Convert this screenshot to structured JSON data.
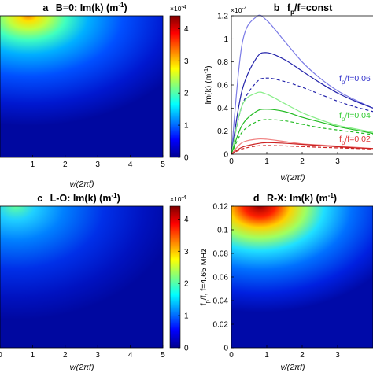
{
  "chart_data": [
    {
      "panel": "a",
      "type": "heatmap",
      "title_letter": "a",
      "title": "B=0: Im(k) (m",
      "title_sup": "-1",
      "title_end": ")",
      "xlabel": "ν/(2πf)",
      "xticks": [
        "1",
        "2",
        "3",
        "4",
        "5"
      ],
      "xlim": [
        0,
        5
      ],
      "colorbar": {
        "ticks": [
          "0",
          "1",
          "2",
          "3",
          "4"
        ],
        "exponent": "×10",
        "exponent_power": "-4",
        "range": [
          0,
          4.4
        ]
      }
    },
    {
      "panel": "b",
      "type": "line",
      "title_letter": "b",
      "title_f": "f",
      "title_sub": "p",
      "title_rest": "/f=const",
      "xlabel": "ν/(2πf)",
      "ylabel": "Im(k) (m",
      "ylabel_sup": "-1",
      "ylabel_end": ")",
      "xlim": [
        0,
        4
      ],
      "ylim": [
        0,
        1.2
      ],
      "xticks": [
        "0",
        "1",
        "2",
        "3"
      ],
      "yticks": [
        "0",
        "0.2",
        "0.4",
        "0.6",
        "0.8",
        "1",
        "1.2"
      ],
      "y_exponent": "×10",
      "y_exponent_power": "-4",
      "legend": [
        {
          "f": "f",
          "sub": "p",
          "text": "/f=0.06",
          "color": "#3333cc"
        },
        {
          "f": "f",
          "sub": "p",
          "text": "/f=0.04",
          "color": "#33cc33"
        },
        {
          "f": "f",
          "sub": "p",
          "text": "/f=0.02",
          "color": "#dd3333"
        }
      ],
      "series": [
        {
          "group": "0.06",
          "style": "solid-light",
          "color": "#7b7be6",
          "x": [
            0,
            0.3,
            0.7,
            1.0,
            1.5,
            2.0,
            2.5,
            3.0,
            3.5,
            4.0
          ],
          "y": [
            0,
            0.95,
            1.19,
            1.16,
            0.98,
            0.8,
            0.66,
            0.55,
            0.47,
            0.4
          ]
        },
        {
          "group": "0.06",
          "style": "solid",
          "color": "#2222aa",
          "x": [
            0,
            0.3,
            0.7,
            1.0,
            1.5,
            2.0,
            2.5,
            3.0,
            3.5,
            4.0
          ],
          "y": [
            0,
            0.55,
            0.83,
            0.88,
            0.82,
            0.72,
            0.62,
            0.53,
            0.46,
            0.4
          ]
        },
        {
          "group": "0.06",
          "style": "dashed",
          "color": "#2222aa",
          "x": [
            0,
            0.3,
            0.7,
            1.0,
            1.5,
            2.0,
            2.5,
            3.0,
            3.5,
            4.0
          ],
          "y": [
            0,
            0.42,
            0.62,
            0.66,
            0.63,
            0.58,
            0.52,
            0.46,
            0.41,
            0.37
          ]
        },
        {
          "group": "0.04",
          "style": "solid-light",
          "color": "#88ee88",
          "x": [
            0,
            0.3,
            0.7,
            1.0,
            1.5,
            2.0,
            2.5,
            3.0,
            3.5,
            4.0
          ],
          "y": [
            0,
            0.42,
            0.53,
            0.52,
            0.44,
            0.36,
            0.3,
            0.25,
            0.22,
            0.19
          ]
        },
        {
          "group": "0.04",
          "style": "solid",
          "color": "#22bb22",
          "x": [
            0,
            0.3,
            0.7,
            1.0,
            1.5,
            2.0,
            2.5,
            3.0,
            3.5,
            4.0
          ],
          "y": [
            0,
            0.25,
            0.37,
            0.39,
            0.37,
            0.32,
            0.28,
            0.24,
            0.21,
            0.18
          ]
        },
        {
          "group": "0.04",
          "style": "dashed",
          "color": "#22bb22",
          "x": [
            0,
            0.3,
            0.7,
            1.0,
            1.5,
            2.0,
            2.5,
            3.0,
            3.5,
            4.0
          ],
          "y": [
            0,
            0.19,
            0.28,
            0.3,
            0.29,
            0.26,
            0.23,
            0.21,
            0.19,
            0.17
          ]
        },
        {
          "group": "0.02",
          "style": "solid-light",
          "color": "#f08080",
          "x": [
            0,
            0.3,
            0.7,
            1.0,
            1.5,
            2.0,
            2.5,
            3.0,
            3.5,
            4.0
          ],
          "y": [
            0,
            0.1,
            0.13,
            0.13,
            0.11,
            0.09,
            0.08,
            0.07,
            0.06,
            0.05
          ]
        },
        {
          "group": "0.02",
          "style": "solid",
          "color": "#cc2222",
          "x": [
            0,
            0.3,
            0.7,
            1.0,
            1.5,
            2.0,
            2.5,
            3.0,
            3.5,
            4.0
          ],
          "y": [
            0,
            0.06,
            0.09,
            0.1,
            0.095,
            0.085,
            0.075,
            0.065,
            0.055,
            0.05
          ]
        },
        {
          "group": "0.02",
          "style": "dashed",
          "color": "#cc2222",
          "x": [
            0,
            0.3,
            0.7,
            1.0,
            1.5,
            2.0,
            2.5,
            3.0,
            3.5,
            4.0
          ],
          "y": [
            0,
            0.045,
            0.07,
            0.075,
            0.072,
            0.066,
            0.06,
            0.055,
            0.05,
            0.045
          ]
        }
      ]
    },
    {
      "panel": "c",
      "type": "heatmap",
      "title_letter": "c",
      "title": "L-O: Im(k) (m",
      "title_sup": "-1",
      "title_end": ")",
      "xlabel": "ν/(2πf)",
      "xticks": [
        "0",
        "1",
        "2",
        "3",
        "4",
        "5"
      ],
      "xlim": [
        0,
        5
      ],
      "colorbar": {
        "ticks": [
          "0",
          "1",
          "2",
          "3",
          "4"
        ],
        "exponent": "×10",
        "exponent_power": "-4",
        "range": [
          0,
          4.4
        ]
      }
    },
    {
      "panel": "d",
      "type": "heatmap",
      "title_letter": "d",
      "title": "R-X: Im(k) (m",
      "title_sup": "-1",
      "title_end": ")",
      "xlabel": "ν/(2πf)",
      "ylabel": "f",
      "ylabel_sub": "p",
      "ylabel_rest": "/f,  f=4.65 MHz",
      "xticks": [
        "0",
        "1",
        "2",
        "3"
      ],
      "yticks": [
        "0",
        "0.02",
        "0.04",
        "0.06",
        "0.08",
        "0.1",
        "0.12"
      ],
      "xlim": [
        0,
        4
      ],
      "ylim": [
        0,
        0.12
      ]
    }
  ]
}
